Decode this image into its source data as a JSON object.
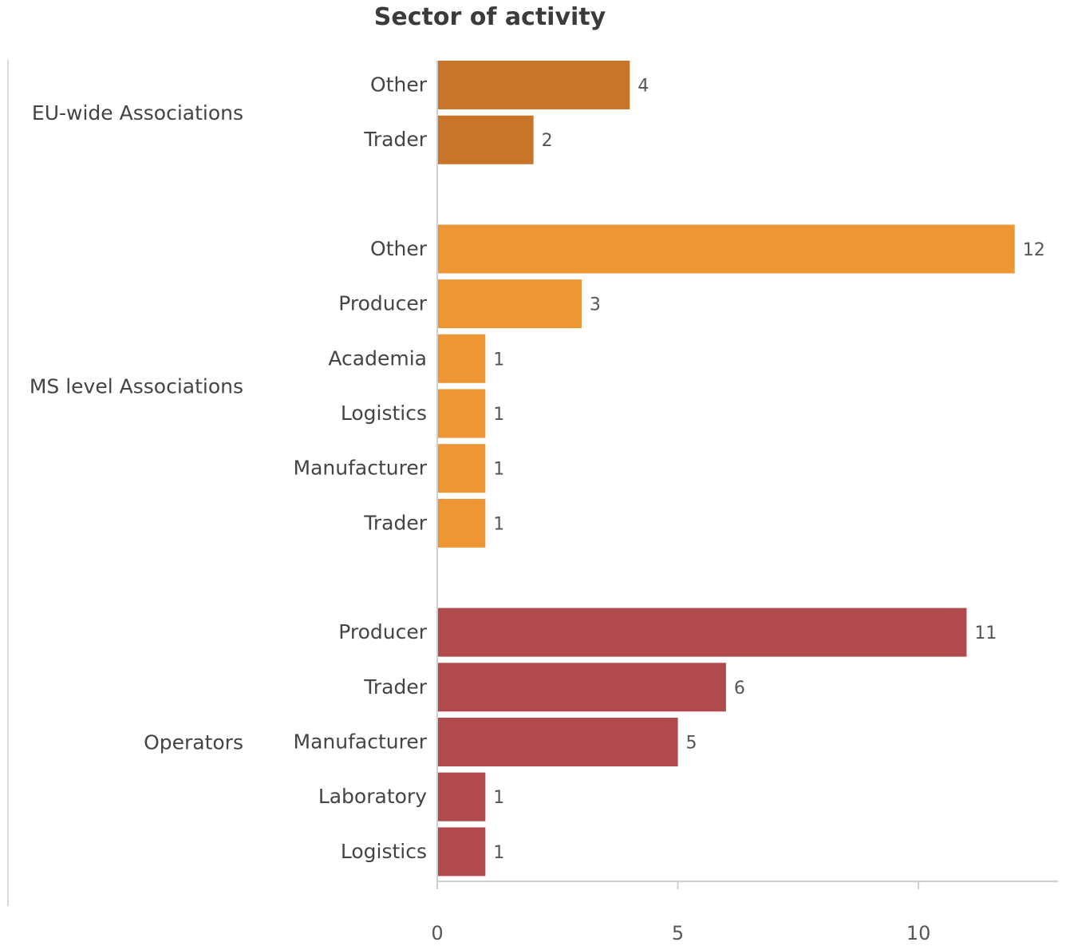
{
  "chart_data": {
    "type": "bar",
    "orientation": "horizontal",
    "title": "Sector of activity",
    "xlim": [
      0,
      12.9
    ],
    "x_ticks": [
      0,
      5,
      10
    ],
    "grid": false,
    "groups": [
      {
        "name": "EU-wide Associations",
        "color": "#c8752a",
        "categories": [
          "Other",
          "Trader"
        ],
        "values": [
          4,
          2
        ]
      },
      {
        "name": "MS level Associations",
        "color": "#ee9634",
        "categories": [
          "Other",
          "Producer",
          "Academia",
          "Logistics",
          "Manufacturer",
          "Trader"
        ],
        "values": [
          12,
          3,
          1,
          1,
          1,
          1
        ]
      },
      {
        "name": "Operators",
        "color": "#b14a4c",
        "categories": [
          "Producer",
          "Trader",
          "Manufacturer",
          "Laboratory",
          "Logistics"
        ],
        "values": [
          11,
          6,
          5,
          1,
          1
        ]
      }
    ]
  }
}
